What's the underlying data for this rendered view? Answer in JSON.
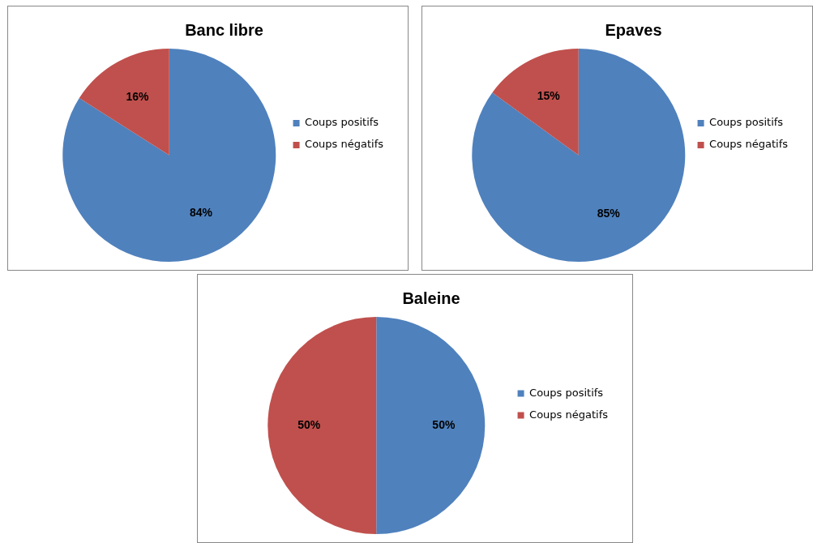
{
  "chart_data": [
    {
      "type": "pie",
      "title": "Banc libre",
      "categories": [
        "Coups positifs",
        "Coups négatifs"
      ],
      "values": [
        84,
        16
      ],
      "colors": [
        "#4f81bd",
        "#c0504d"
      ],
      "value_labels": [
        "84%",
        "16%"
      ],
      "legend": "right"
    },
    {
      "type": "pie",
      "title": "Epaves",
      "categories": [
        "Coups positifs",
        "Coups négatifs"
      ],
      "values": [
        85,
        15
      ],
      "colors": [
        "#4f81bd",
        "#c0504d"
      ],
      "value_labels": [
        "85%",
        "15%"
      ],
      "legend": "right"
    },
    {
      "type": "pie",
      "title": "Baleine",
      "categories": [
        "Coups positifs",
        "Coups négatifs"
      ],
      "values": [
        50,
        50
      ],
      "colors": [
        "#4f81bd",
        "#c0504d"
      ],
      "value_labels": [
        "50%",
        "50%"
      ],
      "legend": "right"
    }
  ]
}
